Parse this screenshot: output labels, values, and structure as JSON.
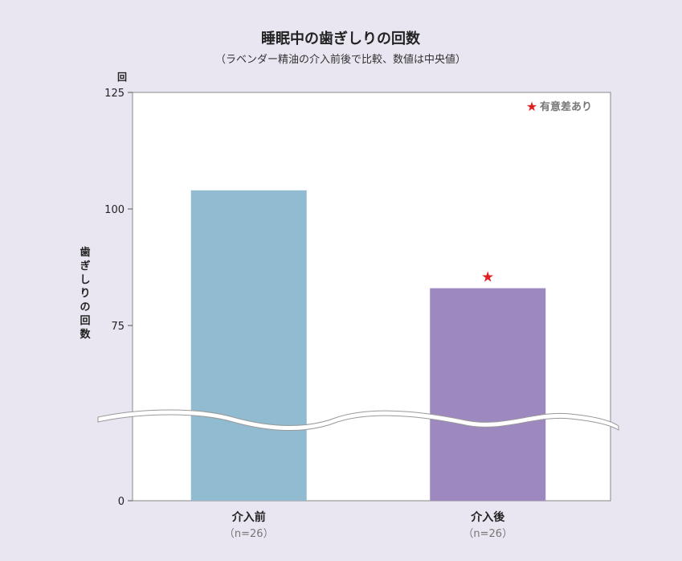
{
  "chart_data": {
    "type": "bar",
    "title": "睡眠中の歯ぎしりの回数",
    "subtitle": "（ラベンダー精油の介入前後で比較、数値は中央値）",
    "y_unit": "回",
    "ylabel": "歯ぎしりの回数",
    "y_axis_break": true,
    "yticks": [
      0,
      75,
      100,
      125
    ],
    "categories": [
      "介入前",
      "介入後"
    ],
    "category_sublabels": [
      "（n=26）",
      "（n=26）"
    ],
    "values": [
      104,
      83
    ],
    "colors": [
      "#90bbd0",
      "#9d88bf"
    ],
    "significance_marker": {
      "category": "介入後",
      "symbol": "★",
      "color": "#e02020"
    },
    "legend": {
      "symbol": "★",
      "text": "有意差あり",
      "placement": "top-right"
    }
  }
}
